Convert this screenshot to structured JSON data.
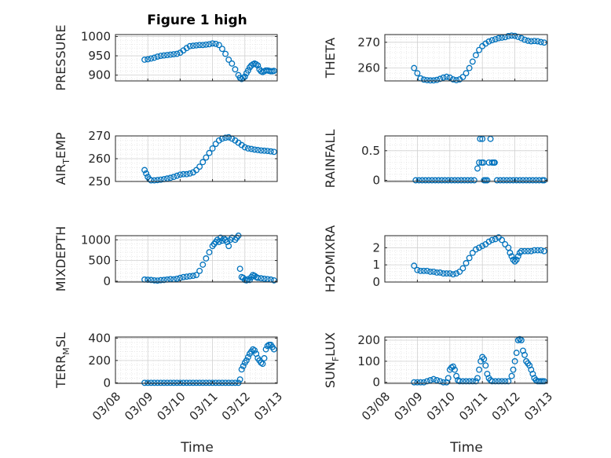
{
  "figure": {
    "title": "Figure 1 high",
    "xlabel": "Time",
    "marker_color": "#0072bd"
  },
  "chart_data": [
    {
      "type": "scatter",
      "ylabel": {
        "main": "PRESSURE",
        "sub": "",
        "tail": ""
      },
      "ylim": [
        885,
        1005
      ],
      "yticks": [
        "900",
        "950",
        "1000"
      ],
      "ytick_values": [
        900,
        950,
        1000
      ],
      "xticks": [],
      "x": [
        8.9,
        9.0,
        9.1,
        9.2,
        9.3,
        9.4,
        9.5,
        9.6,
        9.7,
        9.8,
        9.9,
        10.0,
        10.1,
        10.2,
        10.3,
        10.4,
        10.5,
        10.6,
        10.7,
        10.8,
        10.9,
        11.0,
        11.1,
        11.2,
        11.3,
        11.4,
        11.5,
        11.6,
        11.7,
        11.8,
        11.85,
        11.9,
        11.95,
        12.0,
        12.05,
        12.1,
        12.15,
        12.2,
        12.25,
        12.3,
        12.35,
        12.4,
        12.45,
        12.5,
        12.55,
        12.6,
        12.65,
        12.7,
        12.75,
        12.8,
        12.85,
        12.9
      ],
      "y": [
        940,
        941,
        943,
        945,
        948,
        950,
        951,
        952,
        953,
        954,
        955,
        958,
        964,
        970,
        975,
        976,
        977,
        978,
        978,
        979,
        980,
        982,
        981,
        978,
        968,
        955,
        940,
        930,
        915,
        900,
        893,
        890,
        893,
        896,
        905,
        912,
        920,
        925,
        928,
        930,
        928,
        925,
        915,
        910,
        908,
        910,
        912,
        912,
        911,
        910,
        910,
        911
      ]
    },
    {
      "type": "scatter",
      "ylabel": {
        "main": "THETA",
        "sub": "",
        "tail": ""
      },
      "ylim": [
        255,
        273
      ],
      "yticks": [
        "260",
        "270"
      ],
      "ytick_values": [
        260,
        270
      ],
      "xticks": [],
      "x": [
        8.9,
        9.0,
        9.1,
        9.2,
        9.3,
        9.4,
        9.5,
        9.6,
        9.7,
        9.8,
        9.9,
        10.0,
        10.1,
        10.2,
        10.3,
        10.4,
        10.5,
        10.6,
        10.7,
        10.8,
        10.9,
        11.0,
        11.1,
        11.2,
        11.3,
        11.4,
        11.5,
        11.6,
        11.7,
        11.8,
        11.9,
        12.0,
        12.1,
        12.2,
        12.3,
        12.4,
        12.5,
        12.6,
        12.7,
        12.8,
        12.9
      ],
      "y": [
        260,
        258,
        256,
        255.5,
        255.3,
        255.2,
        255.2,
        255.4,
        255.8,
        256.3,
        256.6,
        256.3,
        255.6,
        255.3,
        255.6,
        256.5,
        258,
        260,
        262.5,
        265,
        267,
        268.5,
        269.5,
        270.3,
        270.8,
        271.2,
        271.6,
        271.8,
        272,
        272.4,
        272.6,
        272.5,
        272.1,
        271.6,
        271,
        270.6,
        270.4,
        270.5,
        270.4,
        270.1,
        269.9
      ]
    },
    {
      "type": "scatter",
      "ylabel": {
        "main": "AIR",
        "sub": "T",
        "tail": "EMP"
      },
      "ylim": [
        250,
        270
      ],
      "yticks": [
        "250",
        "260",
        "270"
      ],
      "ytick_values": [
        250,
        260,
        270
      ],
      "xticks": [],
      "x": [
        8.9,
        8.95,
        9.0,
        9.05,
        9.1,
        9.2,
        9.3,
        9.4,
        9.5,
        9.6,
        9.7,
        9.8,
        9.9,
        10.0,
        10.1,
        10.2,
        10.3,
        10.4,
        10.5,
        10.6,
        10.7,
        10.8,
        10.9,
        11.0,
        11.1,
        11.2,
        11.3,
        11.4,
        11.5,
        11.6,
        11.7,
        11.8,
        11.9,
        12.0,
        12.1,
        12.2,
        12.3,
        12.4,
        12.5,
        12.6,
        12.7,
        12.8,
        12.9
      ],
      "y": [
        255,
        253.5,
        252,
        251,
        250.5,
        250.5,
        250.6,
        250.8,
        251,
        251.3,
        251.6,
        252,
        252.5,
        253,
        253.2,
        253.2,
        253.5,
        254,
        255,
        256.5,
        258.5,
        260.5,
        262.5,
        264.5,
        266.5,
        268,
        268.8,
        269.2,
        269.4,
        268.8,
        268,
        267,
        266,
        265,
        264.5,
        264.3,
        264,
        263.8,
        263.6,
        263.5,
        263.4,
        263.2,
        263
      ]
    },
    {
      "type": "scatter",
      "ylabel": {
        "main": "RAINFALL",
        "sub": "",
        "tail": ""
      },
      "ylim": [
        -0.02,
        0.75
      ],
      "yticks": [
        "0",
        "0.5"
      ],
      "ytick_values": [
        0,
        0.5
      ],
      "xticks": [],
      "x": [
        8.95,
        9.05,
        9.15,
        9.25,
        9.35,
        9.45,
        9.55,
        9.65,
        9.75,
        9.85,
        9.95,
        10.05,
        10.15,
        10.25,
        10.35,
        10.45,
        10.55,
        10.65,
        10.75,
        10.85,
        10.9,
        10.93,
        10.98,
        11.0,
        11.03,
        11.05,
        11.1,
        11.15,
        11.2,
        11.25,
        11.3,
        11.35,
        11.38,
        11.45,
        11.55,
        11.65,
        11.75,
        11.85,
        11.95,
        12.05,
        12.15,
        12.25,
        12.35,
        12.45,
        12.55,
        12.65,
        12.75,
        12.85,
        12.9
      ],
      "y": [
        0,
        0,
        0,
        0,
        0,
        0,
        0,
        0,
        0,
        0,
        0,
        0,
        0,
        0,
        0,
        0,
        0,
        0,
        0,
        0.2,
        0.3,
        0.7,
        0.3,
        0.7,
        0.3,
        0,
        0,
        0,
        0.3,
        0.7,
        0.3,
        0.3,
        0.3,
        0,
        0,
        0,
        0,
        0,
        0,
        0,
        0,
        0,
        0,
        0,
        0,
        0,
        0,
        0,
        0
      ]
    },
    {
      "type": "scatter",
      "ylabel": {
        "main": "MIXDEPTH",
        "sub": "",
        "tail": ""
      },
      "ylim": [
        -20,
        1100
      ],
      "yticks": [
        "0",
        "500",
        "1000"
      ],
      "ytick_values": [
        0,
        500,
        1000
      ],
      "xticks": [],
      "x": [
        8.9,
        9.0,
        9.1,
        9.2,
        9.3,
        9.4,
        9.5,
        9.6,
        9.7,
        9.8,
        9.9,
        10.0,
        10.1,
        10.2,
        10.3,
        10.4,
        10.5,
        10.6,
        10.7,
        10.8,
        10.9,
        11.0,
        11.05,
        11.1,
        11.15,
        11.2,
        11.25,
        11.3,
        11.35,
        11.4,
        11.45,
        11.5,
        11.55,
        11.6,
        11.7,
        11.75,
        11.8,
        11.85,
        11.9,
        11.95,
        12.0,
        12.05,
        12.1,
        12.15,
        12.2,
        12.25,
        12.3,
        12.35,
        12.4,
        12.5,
        12.6,
        12.7,
        12.8,
        12.9
      ],
      "y": [
        40,
        35,
        30,
        20,
        15,
        25,
        30,
        40,
        50,
        45,
        60,
        80,
        100,
        110,
        120,
        130,
        150,
        250,
        400,
        550,
        700,
        850,
        900,
        950,
        1000,
        950,
        1050,
        980,
        1030,
        1000,
        950,
        850,
        1000,
        1050,
        1000,
        1050,
        1100,
        300,
        100,
        80,
        30,
        20,
        50,
        30,
        100,
        150,
        130,
        100,
        80,
        70,
        60,
        50,
        40,
        20
      ]
    },
    {
      "type": "scatter",
      "ylabel": {
        "main": "H2OMIXRA",
        "sub": "",
        "tail": ""
      },
      "ylim": [
        0,
        2.7
      ],
      "yticks": [
        "0",
        "1",
        "2"
      ],
      "ytick_values": [
        0,
        1,
        2
      ],
      "xticks": [],
      "x": [
        8.9,
        9.0,
        9.1,
        9.2,
        9.3,
        9.4,
        9.5,
        9.6,
        9.7,
        9.8,
        9.9,
        10.0,
        10.1,
        10.2,
        10.3,
        10.4,
        10.5,
        10.6,
        10.7,
        10.8,
        10.9,
        11.0,
        11.1,
        11.2,
        11.3,
        11.4,
        11.5,
        11.6,
        11.7,
        11.8,
        11.85,
        11.9,
        11.95,
        12.0,
        12.05,
        12.1,
        12.15,
        12.2,
        12.3,
        12.4,
        12.5,
        12.6,
        12.7,
        12.8,
        12.9
      ],
      "y": [
        0.95,
        0.7,
        0.65,
        0.65,
        0.65,
        0.6,
        0.6,
        0.55,
        0.55,
        0.5,
        0.5,
        0.5,
        0.45,
        0.5,
        0.6,
        0.8,
        1.1,
        1.4,
        1.7,
        1.9,
        2.0,
        2.1,
        2.2,
        2.35,
        2.45,
        2.5,
        2.6,
        2.45,
        2.2,
        2.0,
        1.7,
        1.5,
        1.3,
        1.2,
        1.3,
        1.5,
        1.7,
        1.8,
        1.8,
        1.8,
        1.8,
        1.85,
        1.85,
        1.85,
        1.8
      ]
    },
    {
      "type": "scatter",
      "ylabel": {
        "main": "TERR",
        "sub": "M",
        "tail": "SL"
      },
      "ylim": [
        -5,
        410
      ],
      "yticks": [
        "0",
        "200",
        "400"
      ],
      "ytick_values": [
        0,
        200,
        400
      ],
      "xticks": [
        "03/08",
        "03/09",
        "03/10",
        "03/11",
        "03/12",
        "03/13"
      ],
      "xtick_values": [
        8,
        9,
        10,
        11,
        12,
        13
      ],
      "x": [
        8.9,
        9.0,
        9.1,
        9.2,
        9.3,
        9.4,
        9.5,
        9.6,
        9.7,
        9.8,
        9.9,
        10.0,
        10.1,
        10.2,
        10.3,
        10.4,
        10.5,
        10.6,
        10.7,
        10.8,
        10.9,
        11.0,
        11.1,
        11.2,
        11.3,
        11.4,
        11.5,
        11.6,
        11.7,
        11.8,
        11.85,
        11.9,
        11.95,
        12.0,
        12.05,
        12.1,
        12.15,
        12.2,
        12.25,
        12.3,
        12.35,
        12.4,
        12.45,
        12.5,
        12.55,
        12.6,
        12.65,
        12.7,
        12.75,
        12.8,
        12.85,
        12.9
      ],
      "y": [
        0,
        0,
        0,
        0,
        0,
        0,
        0,
        0,
        0,
        0,
        0,
        0,
        0,
        0,
        0,
        0,
        0,
        0,
        0,
        0,
        0,
        0,
        0,
        0,
        0,
        0,
        0,
        0,
        0,
        0,
        30,
        120,
        150,
        180,
        200,
        230,
        260,
        280,
        300,
        290,
        260,
        220,
        200,
        180,
        170,
        220,
        300,
        330,
        340,
        340,
        320,
        300
      ]
    },
    {
      "type": "scatter",
      "ylabel": {
        "main": "SUN",
        "sub": "F",
        "tail": "LUX"
      },
      "ylim": [
        -5,
        215
      ],
      "yticks": [
        "0",
        "100",
        "200"
      ],
      "ytick_values": [
        0,
        100,
        200
      ],
      "xticks": [
        "03/08",
        "03/09",
        "03/10",
        "03/11",
        "03/12",
        "03/13"
      ],
      "xtick_values": [
        8,
        9,
        10,
        11,
        12,
        13
      ],
      "x": [
        8.9,
        9.0,
        9.1,
        9.2,
        9.3,
        9.4,
        9.5,
        9.6,
        9.7,
        9.8,
        9.9,
        9.95,
        10.0,
        10.05,
        10.1,
        10.15,
        10.2,
        10.25,
        10.3,
        10.4,
        10.5,
        10.6,
        10.7,
        10.8,
        10.85,
        10.9,
        10.95,
        11.0,
        11.05,
        11.1,
        11.15,
        11.2,
        11.25,
        11.3,
        11.4,
        11.5,
        11.6,
        11.7,
        11.8,
        11.9,
        11.95,
        12.0,
        12.05,
        12.1,
        12.15,
        12.2,
        12.25,
        12.3,
        12.35,
        12.4,
        12.45,
        12.5,
        12.55,
        12.6,
        12.65,
        12.7,
        12.75,
        12.8,
        12.85,
        12.9
      ],
      "y": [
        0,
        0,
        0,
        0,
        5,
        10,
        15,
        10,
        5,
        0,
        0,
        20,
        60,
        70,
        75,
        60,
        30,
        10,
        5,
        5,
        5,
        5,
        5,
        5,
        20,
        60,
        100,
        120,
        110,
        80,
        40,
        20,
        10,
        5,
        5,
        5,
        5,
        5,
        5,
        30,
        60,
        100,
        140,
        200,
        205,
        200,
        150,
        130,
        100,
        90,
        80,
        60,
        40,
        20,
        10,
        5,
        5,
        5,
        5,
        5
      ]
    }
  ]
}
